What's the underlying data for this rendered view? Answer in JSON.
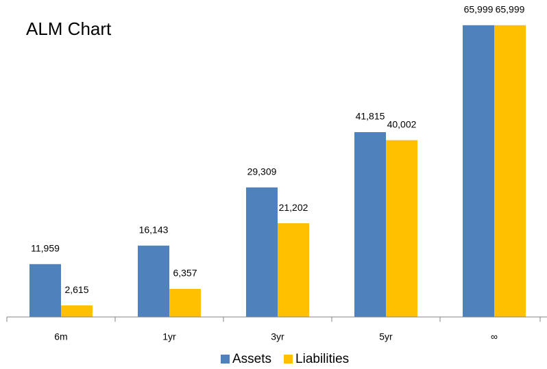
{
  "chart_data": {
    "type": "bar",
    "title": "ALM Chart",
    "categories": [
      "6m",
      "1yr",
      "3yr",
      "5yr",
      "∞"
    ],
    "series": [
      {
        "name": "Assets",
        "color": "#4f81bd",
        "values": [
          11959,
          16143,
          29309,
          41815,
          65999
        ],
        "value_labels": [
          "11,959",
          "16,143",
          "29,309",
          "41,815",
          "65,999"
        ]
      },
      {
        "name": "Liabilities",
        "color": "#ffc000",
        "values": [
          2615,
          6357,
          21202,
          40002,
          65999
        ],
        "value_labels": [
          "2,615",
          "6,357",
          "21,202",
          "40,002",
          "65,999"
        ]
      }
    ],
    "ylim": [
      0,
      70000
    ],
    "grid": false,
    "legend": "bottom"
  }
}
